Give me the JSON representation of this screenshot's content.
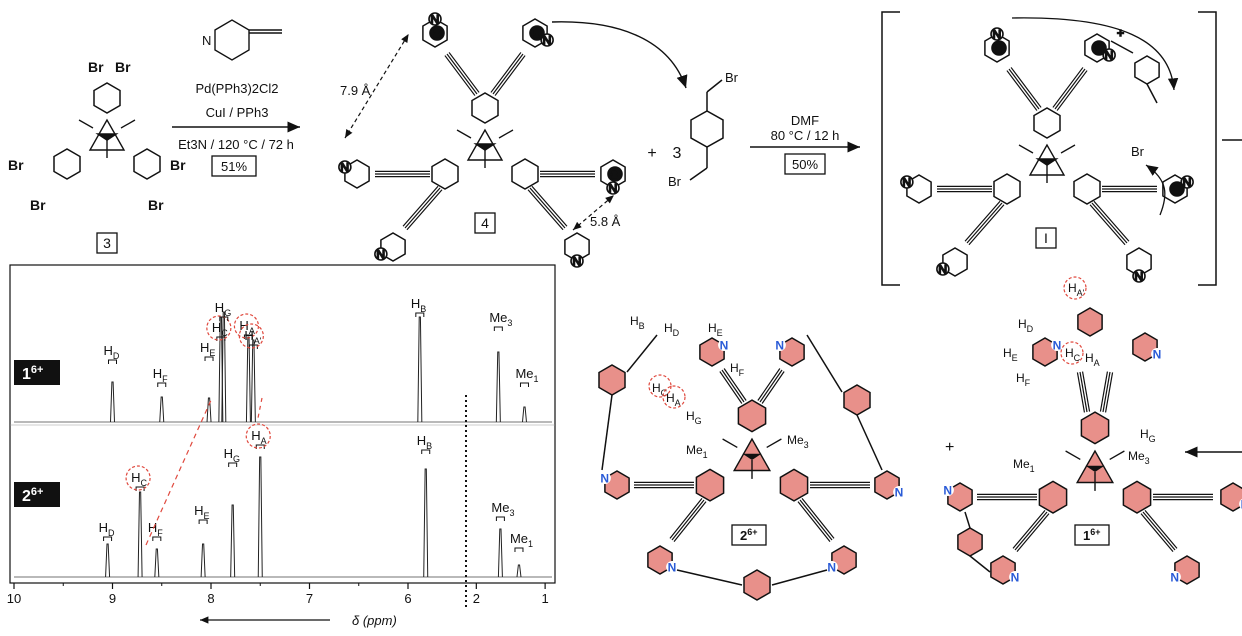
{
  "scheme": {
    "compound_3": "3",
    "compound_4": "4",
    "intermediate": "I",
    "br_label": "Br",
    "n_label": "N",
    "plus": "+",
    "coeff_3": "3",
    "step1": {
      "reagent1": "Pd(PPh3)2Cl2",
      "reagent2": "CuI  / PPh3",
      "conditions": "Et3N / 120 °C / 72 h",
      "yield": "51%"
    },
    "step2": {
      "solvent": "DMF",
      "conditions": "80 °C / 12 h",
      "yield": "50%"
    },
    "distances": {
      "d1": "7.9 Å",
      "d2": "5.8 Å"
    },
    "pyridine_numbers": [
      "1",
      "2",
      "3"
    ]
  },
  "nmr": {
    "spectrum_top": {
      "label": "1",
      "charge": "6+"
    },
    "spectrum_bottom": {
      "label": "2",
      "charge": "6+"
    },
    "axis": {
      "ticks_left": [
        "10",
        "9",
        "8",
        "7",
        "6"
      ],
      "ticks_right": [
        "2",
        "1"
      ],
      "xlabel": "δ (ppm)"
    },
    "peaks_top": [
      {
        "label": "H",
        "sub": "D",
        "ppm": 9.0
      },
      {
        "label": "H",
        "sub": "F",
        "ppm": 8.5
      },
      {
        "label": "H",
        "sub": "E",
        "ppm": 8.02
      },
      {
        "label": "H",
        "sub": "C",
        "ppm": 7.9
      },
      {
        "label": "H",
        "sub": "G",
        "ppm": 7.87
      },
      {
        "label": "H",
        "sub": "A",
        "ppm": 7.62
      },
      {
        "label": "H",
        "sub": "A'",
        "ppm": 7.57
      },
      {
        "label": "H",
        "sub": "B",
        "ppm": 5.88
      },
      {
        "label": "Me",
        "sub": "3",
        "ppm": 1.68
      },
      {
        "label": "Me",
        "sub": "1",
        "ppm": 1.3
      }
    ],
    "peaks_bottom": [
      {
        "label": "H",
        "sub": "D",
        "ppm": 9.05
      },
      {
        "label": "H",
        "sub": "C",
        "ppm": 8.72
      },
      {
        "label": "H",
        "sub": "F",
        "ppm": 8.55
      },
      {
        "label": "H",
        "sub": "E",
        "ppm": 8.08
      },
      {
        "label": "H",
        "sub": "G",
        "ppm": 7.78
      },
      {
        "label": "H",
        "sub": "A",
        "ppm": 7.5
      },
      {
        "label": "H",
        "sub": "B",
        "ppm": 5.82
      },
      {
        "label": "Me",
        "sub": "3",
        "ppm": 1.65
      },
      {
        "label": "Me",
        "sub": "1",
        "ppm": 1.38
      }
    ]
  },
  "structures": {
    "cage_2": {
      "label": "2",
      "charge": "6+"
    },
    "cage_1": {
      "label": "1",
      "charge": "6+"
    },
    "labels": {
      "HB": "B",
      "HD": "D",
      "HE": "E",
      "HF": "F",
      "HC": "C",
      "HA": "A",
      "HG": "G",
      "HAp": "A'",
      "Me1": "1",
      "Me3": "3"
    },
    "plus_sign": "+"
  },
  "colors": {
    "ring_fill": "#e8908a",
    "dashed_circle": "#e0493e",
    "n_blue": "#2a5bd7"
  }
}
